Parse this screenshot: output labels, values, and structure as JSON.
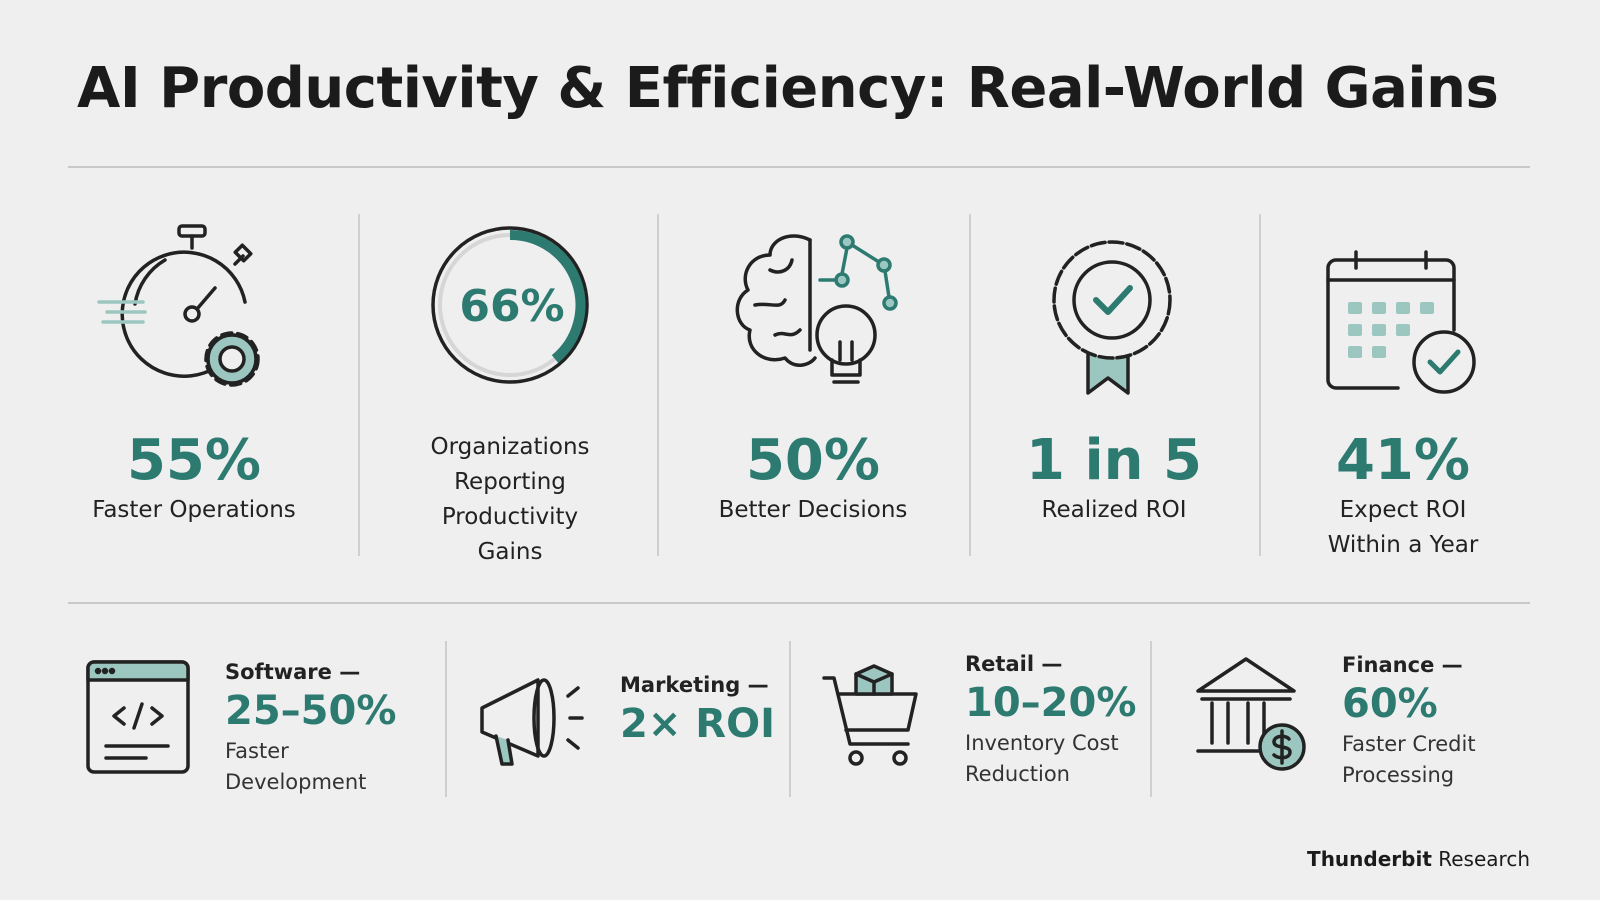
{
  "header": {
    "title": "AI Productivity & Efficiency: Real-World Gains"
  },
  "stats": [
    {
      "value": "55%",
      "label": "Faster Operations"
    },
    {
      "value": "66%",
      "label": "Organizations Reporting Productivity Gains"
    },
    {
      "value": "50%",
      "label": "Better Decisions"
    },
    {
      "value": "1 in 5",
      "label": "Realized ROI"
    },
    {
      "value": "41%",
      "label": "Expect ROI Within a Year"
    }
  ],
  "industries": [
    {
      "sector": "Software —",
      "value": "25–50%",
      "label": "Faster Development"
    },
    {
      "sector": "Marketing —",
      "value": "2× ROI"
    },
    {
      "sector": "Retail —",
      "value": "10–20%",
      "label": "Inventory Cost Reduction"
    },
    {
      "sector": "Finance —",
      "value": "60%",
      "label": "Faster Credit Processing"
    }
  ],
  "footer": {
    "brand": "Thunderbit",
    "suffix": "Research"
  }
}
